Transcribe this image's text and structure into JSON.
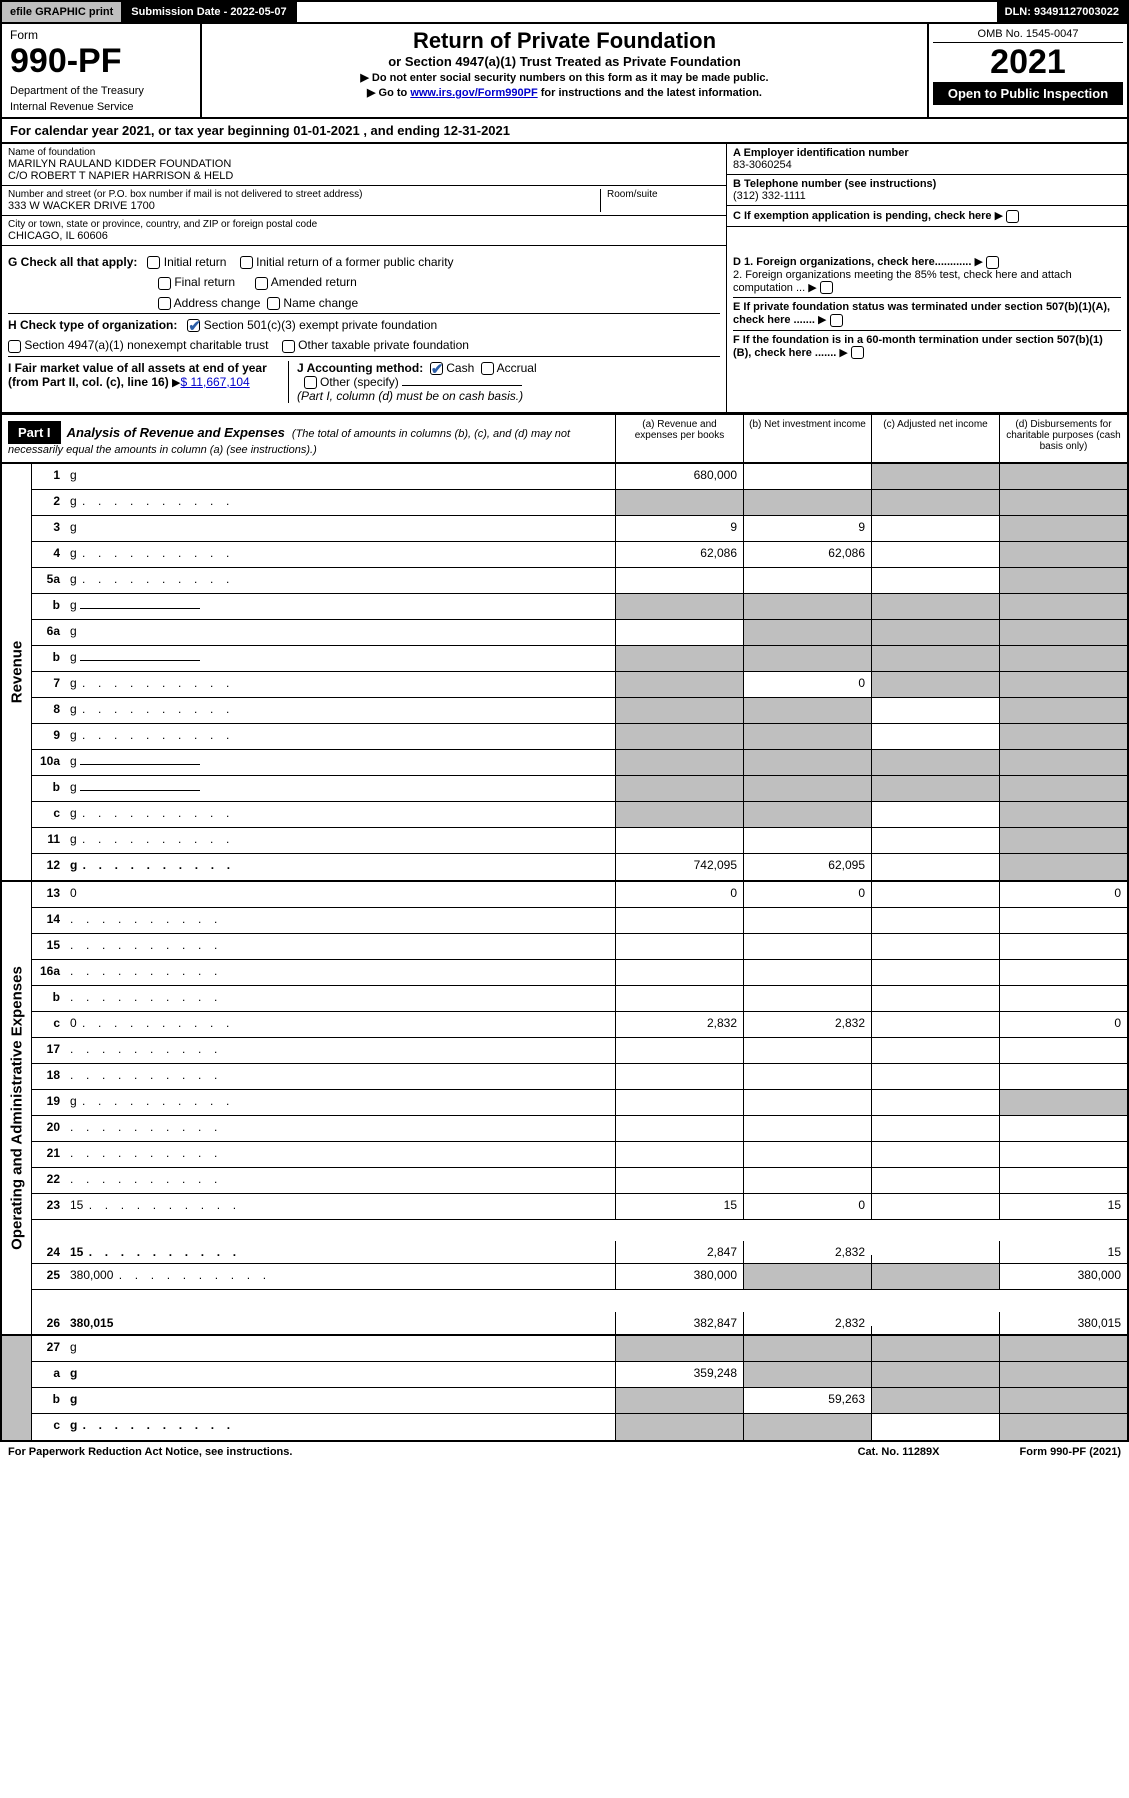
{
  "top": {
    "efile": "efile GRAPHIC print",
    "submission": "Submission Date - 2022-05-07",
    "dln": "DLN: 93491127003022"
  },
  "header": {
    "form_label": "Form",
    "form_no": "990-PF",
    "dept": "Department of the Treasury",
    "irs": "Internal Revenue Service",
    "title": "Return of Private Foundation",
    "subtitle": "or Section 4947(a)(1) Trust Treated as Private Foundation",
    "note1": "▶ Do not enter social security numbers on this form as it may be made public.",
    "note2_pre": "▶ Go to ",
    "note2_link": "www.irs.gov/Form990PF",
    "note2_post": " for instructions and the latest information.",
    "omb": "OMB No. 1545-0047",
    "year": "2021",
    "open": "Open to Public Inspection"
  },
  "calyear": "For calendar year 2021, or tax year beginning 01-01-2021                          , and ending 12-31-2021",
  "info": {
    "name_label": "Name of foundation",
    "name1": "MARILYN RAULAND KIDDER FOUNDATION",
    "name2": "C/O ROBERT T NAPIER HARRISON & HELD",
    "addr_label": "Number and street (or P.O. box number if mail is not delivered to street address)",
    "addr": "333 W WACKER DRIVE 1700",
    "room_label": "Room/suite",
    "city_label": "City or town, state or province, country, and ZIP or foreign postal code",
    "city": "CHICAGO, IL  60606",
    "a_label": "A Employer identification number",
    "a_val": "83-3060254",
    "b_label": "B Telephone number (see instructions)",
    "b_val": "(312) 332-1111",
    "c_label": "C If exemption application is pending, check here"
  },
  "checks": {
    "g_label": "G Check all that apply:",
    "g_opts": [
      "Initial return",
      "Initial return of a former public charity",
      "Final return",
      "Amended return",
      "Address change",
      "Name change"
    ],
    "h_label": "H Check type of organization:",
    "h1": "Section 501(c)(3) exempt private foundation",
    "h2": "Section 4947(a)(1) nonexempt charitable trust",
    "h3": "Other taxable private foundation",
    "i_label": "I Fair market value of all assets at end of year (from Part II, col. (c), line 16)",
    "i_val": "$  11,667,104",
    "j_label": "J Accounting method:",
    "j_cash": "Cash",
    "j_accrual": "Accrual",
    "j_other": "Other (specify)",
    "j_note": "(Part I, column (d) must be on cash basis.)",
    "d1": "D 1. Foreign organizations, check here............",
    "d2": "2. Foreign organizations meeting the 85% test, check here and attach computation ...",
    "e": "E  If private foundation status was terminated under section 507(b)(1)(A), check here .......",
    "f": "F  If the foundation is in a 60-month termination under section 507(b)(1)(B), check here ......."
  },
  "part1": {
    "label": "Part I",
    "title": "Analysis of Revenue and Expenses",
    "desc": "(The total of amounts in columns (b), (c), and (d) may not necessarily equal the amounts in column (a) (see instructions).)",
    "cols": {
      "a": "(a)   Revenue and expenses per books",
      "b": "(b)   Net investment income",
      "c": "(c)   Adjusted net income",
      "d": "(d)  Disbursements for charitable purposes (cash basis only)"
    }
  },
  "sections": {
    "revenue": "Revenue",
    "opex": "Operating and Administrative Expenses"
  },
  "rows": [
    {
      "n": "1",
      "d": "g",
      "a": "680,000",
      "b": "",
      "c": "g"
    },
    {
      "n": "2",
      "d": "g",
      "dots": true,
      "a": "g",
      "b": "g",
      "c": "g",
      "noborder_a": true
    },
    {
      "n": "3",
      "d": "g",
      "a": "9",
      "b": "9",
      "c": ""
    },
    {
      "n": "4",
      "d": "g",
      "dots": true,
      "a": "62,086",
      "b": "62,086",
      "c": ""
    },
    {
      "n": "5a",
      "d": "g",
      "dots": true,
      "a": "",
      "b": "",
      "c": ""
    },
    {
      "n": "b",
      "d": "g",
      "inline": true,
      "a": "g",
      "b": "g",
      "c": "g"
    },
    {
      "n": "6a",
      "d": "g",
      "a": "",
      "b": "g",
      "c": "g"
    },
    {
      "n": "b",
      "d": "g",
      "inline": true,
      "a": "g",
      "b": "g",
      "c": "g"
    },
    {
      "n": "7",
      "d": "g",
      "dots": true,
      "a": "g",
      "b": "0",
      "c": "g"
    },
    {
      "n": "8",
      "d": "g",
      "dots": true,
      "a": "g",
      "b": "g",
      "c": ""
    },
    {
      "n": "9",
      "d": "g",
      "dots": true,
      "a": "g",
      "b": "g",
      "c": ""
    },
    {
      "n": "10a",
      "d": "g",
      "inline": true,
      "a": "g",
      "b": "g",
      "c": "g"
    },
    {
      "n": "b",
      "d": "g",
      "dots": true,
      "inline": true,
      "a": "g",
      "b": "g",
      "c": "g"
    },
    {
      "n": "c",
      "d": "g",
      "dots": true,
      "a": "g",
      "b": "g",
      "c": ""
    },
    {
      "n": "11",
      "d": "g",
      "dots": true,
      "a": "",
      "b": "",
      "c": ""
    },
    {
      "n": "12",
      "d": "g",
      "dots": true,
      "bold": true,
      "a": "742,095",
      "b": "62,095",
      "c": ""
    }
  ],
  "rows2": [
    {
      "n": "13",
      "d": "0",
      "a": "0",
      "b": "0",
      "c": ""
    },
    {
      "n": "14",
      "d": "",
      "dots": true,
      "a": "",
      "b": "",
      "c": ""
    },
    {
      "n": "15",
      "d": "",
      "dots": true,
      "a": "",
      "b": "",
      "c": ""
    },
    {
      "n": "16a",
      "d": "",
      "dots": true,
      "a": "",
      "b": "",
      "c": ""
    },
    {
      "n": "b",
      "d": "",
      "dots": true,
      "a": "",
      "b": "",
      "c": ""
    },
    {
      "n": "c",
      "d": "0",
      "dots": true,
      "a": "2,832",
      "b": "2,832",
      "c": ""
    },
    {
      "n": "17",
      "d": "",
      "dots": true,
      "a": "",
      "b": "",
      "c": ""
    },
    {
      "n": "18",
      "d": "",
      "dots": true,
      "a": "",
      "b": "",
      "c": ""
    },
    {
      "n": "19",
      "d": "g",
      "dots": true,
      "a": "",
      "b": "",
      "c": ""
    },
    {
      "n": "20",
      "d": "",
      "dots": true,
      "a": "",
      "b": "",
      "c": ""
    },
    {
      "n": "21",
      "d": "",
      "dots": true,
      "a": "",
      "b": "",
      "c": ""
    },
    {
      "n": "22",
      "d": "",
      "dots": true,
      "a": "",
      "b": "",
      "c": ""
    },
    {
      "n": "23",
      "d": "15",
      "dots": true,
      "a": "15",
      "b": "0",
      "c": ""
    },
    {
      "n": "24",
      "d": "15",
      "dots": true,
      "bold": true,
      "a": "2,847",
      "b": "2,832",
      "c": "",
      "tall": true
    },
    {
      "n": "25",
      "d": "380,000",
      "dots": true,
      "a": "380,000",
      "b": "g",
      "c": "g"
    },
    {
      "n": "26",
      "d": "380,015",
      "bold": true,
      "a": "382,847",
      "b": "2,832",
      "c": "",
      "tall": true
    }
  ],
  "rows3": [
    {
      "n": "27",
      "d": "g",
      "a": "g",
      "b": "g",
      "c": "g"
    },
    {
      "n": "a",
      "d": "g",
      "bold": true,
      "a": "359,248",
      "b": "g",
      "c": "g"
    },
    {
      "n": "b",
      "d": "g",
      "bold": true,
      "a": "g",
      "b": "59,263",
      "c": "g"
    },
    {
      "n": "c",
      "d": "g",
      "dots": true,
      "bold": true,
      "a": "g",
      "b": "g",
      "c": ""
    }
  ],
  "footer": {
    "left": "For Paperwork Reduction Act Notice, see instructions.",
    "mid": "Cat. No. 11289X",
    "right": "Form 990-PF (2021)"
  }
}
